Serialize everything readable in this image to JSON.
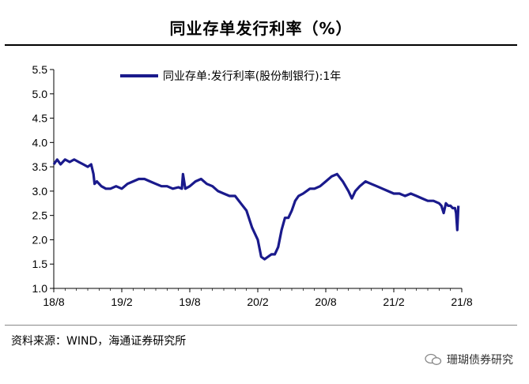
{
  "title": "同业存单发行利率（%）",
  "source": "资料来源：WIND，海通证券研究所",
  "watermark": "珊瑚债券研究",
  "colors": {
    "line": "#1a1a8c",
    "axis": "#000000"
  },
  "chart_data": {
    "type": "line",
    "title": "同业存单发行利率（%）",
    "ylim": [
      1.0,
      5.5
    ],
    "yticks": [
      "1.0",
      "1.5",
      "2.0",
      "2.5",
      "3.0",
      "3.5",
      "4.0",
      "4.5",
      "5.0",
      "5.5"
    ],
    "xlabels": [
      "18/8",
      "19/2",
      "19/8",
      "20/2",
      "20/8",
      "21/2",
      "21/8"
    ],
    "x_range": [
      0,
      36
    ],
    "legend": "同业存单:发行利率(股份制银行):1年",
    "legend_position": "top",
    "series": [
      {
        "name": "同业存单:发行利率(股份制银行):1年",
        "x": [
          0,
          0.3,
          0.6,
          1.0,
          1.4,
          1.8,
          2.2,
          2.6,
          3.0,
          3.3,
          3.5,
          3.6,
          3.8,
          4.2,
          4.6,
          5.0,
          5.5,
          6.0,
          6.5,
          7.0,
          7.5,
          8.0,
          8.5,
          9.0,
          9.5,
          10.0,
          10.5,
          11.0,
          11.3,
          11.4,
          11.6,
          12.0,
          12.5,
          13.0,
          13.5,
          14.0,
          14.5,
          15.0,
          15.5,
          16.0,
          16.5,
          17.0,
          17.5,
          18.0,
          18.3,
          18.6,
          18.9,
          19.2,
          19.5,
          19.8,
          20.1,
          20.4,
          20.7,
          21.0,
          21.3,
          21.6,
          22.0,
          22.3,
          22.6,
          23.0,
          23.5,
          24.0,
          24.5,
          25.0,
          25.5,
          26.0,
          26.3,
          26.6,
          27.0,
          27.5,
          28.0,
          28.5,
          29.0,
          29.5,
          30.0,
          30.5,
          31.0,
          31.5,
          32.0,
          32.5,
          33.0,
          33.5,
          34.0,
          34.2,
          34.4,
          34.6,
          34.8,
          35.0,
          35.2,
          35.4,
          35.5,
          35.6,
          35.7
        ],
        "values": [
          3.55,
          3.65,
          3.55,
          3.65,
          3.6,
          3.65,
          3.6,
          3.55,
          3.5,
          3.55,
          3.35,
          3.15,
          3.2,
          3.1,
          3.05,
          3.05,
          3.1,
          3.05,
          3.15,
          3.2,
          3.25,
          3.25,
          3.2,
          3.15,
          3.1,
          3.1,
          3.05,
          3.08,
          3.05,
          3.35,
          3.05,
          3.1,
          3.2,
          3.25,
          3.15,
          3.1,
          3.0,
          2.95,
          2.9,
          2.9,
          2.75,
          2.6,
          2.25,
          2.0,
          1.65,
          1.6,
          1.65,
          1.7,
          1.7,
          1.85,
          2.2,
          2.45,
          2.45,
          2.6,
          2.8,
          2.9,
          2.95,
          3.0,
          3.05,
          3.05,
          3.1,
          3.2,
          3.3,
          3.35,
          3.2,
          3.0,
          2.85,
          3.0,
          3.1,
          3.2,
          3.15,
          3.1,
          3.05,
          3.0,
          2.95,
          2.95,
          2.9,
          2.95,
          2.9,
          2.85,
          2.8,
          2.8,
          2.75,
          2.7,
          2.55,
          2.75,
          2.7,
          2.7,
          2.65,
          2.65,
          2.55,
          2.2,
          2.7
        ]
      }
    ]
  }
}
